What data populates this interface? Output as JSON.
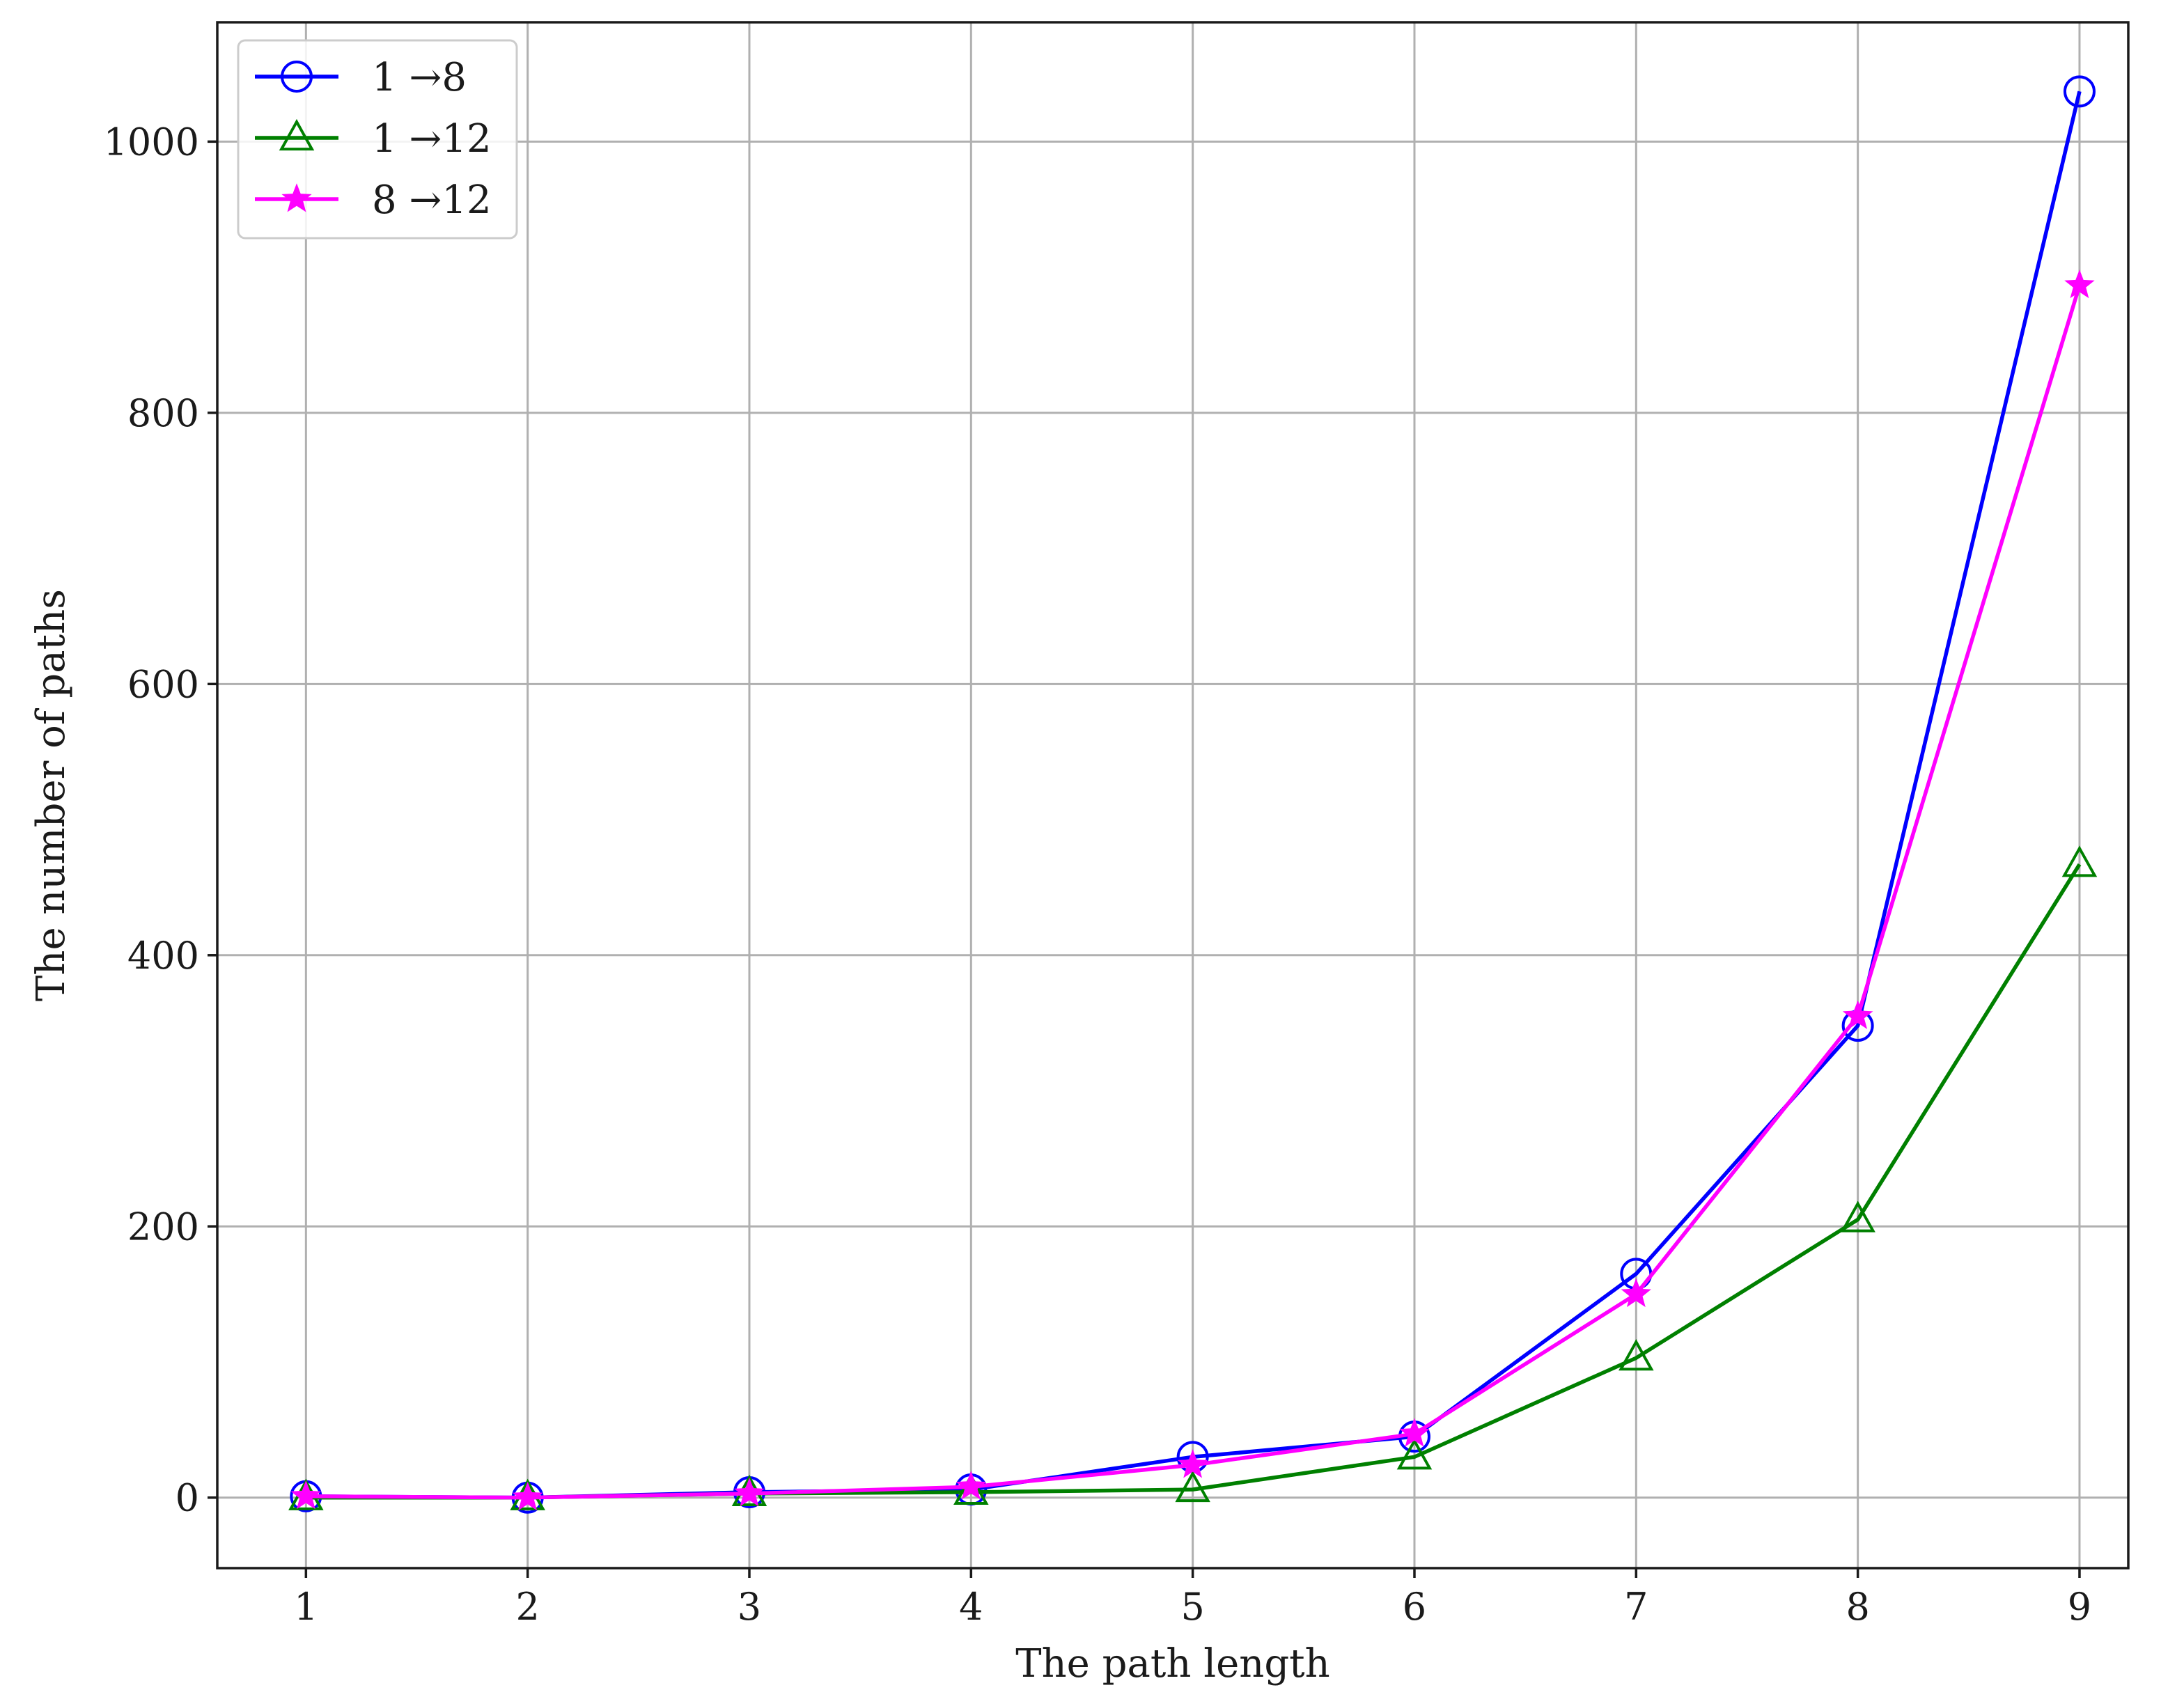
{
  "chart_data": {
    "type": "line",
    "title": "",
    "xlabel": "The path length",
    "ylabel": "The number of paths",
    "x": [
      1,
      2,
      3,
      4,
      5,
      6,
      7,
      8,
      9
    ],
    "xlim": [
      0.6,
      9.22
    ],
    "ylim": [
      -52,
      1088
    ],
    "xticks": [
      "1",
      "2",
      "3",
      "4",
      "5",
      "6",
      "7",
      "8",
      "9"
    ],
    "yticks": [
      0,
      200,
      400,
      600,
      800,
      1000
    ],
    "grid": true,
    "legend_position": "top-left",
    "series": [
      {
        "name": "1 →8",
        "color": "#0000ff",
        "marker": "circle",
        "values": [
          1,
          0,
          4,
          6,
          30,
          45,
          165,
          348,
          1037
        ]
      },
      {
        "name": "1 →12",
        "color": "#008000",
        "marker": "triangle",
        "values": [
          0,
          0,
          3,
          4,
          6,
          30,
          103,
          205,
          467
        ]
      },
      {
        "name": "8 →12",
        "color": "#ff00ff",
        "marker": "star",
        "values": [
          1,
          0,
          3,
          8,
          24,
          47,
          150,
          355,
          894
        ]
      }
    ]
  }
}
